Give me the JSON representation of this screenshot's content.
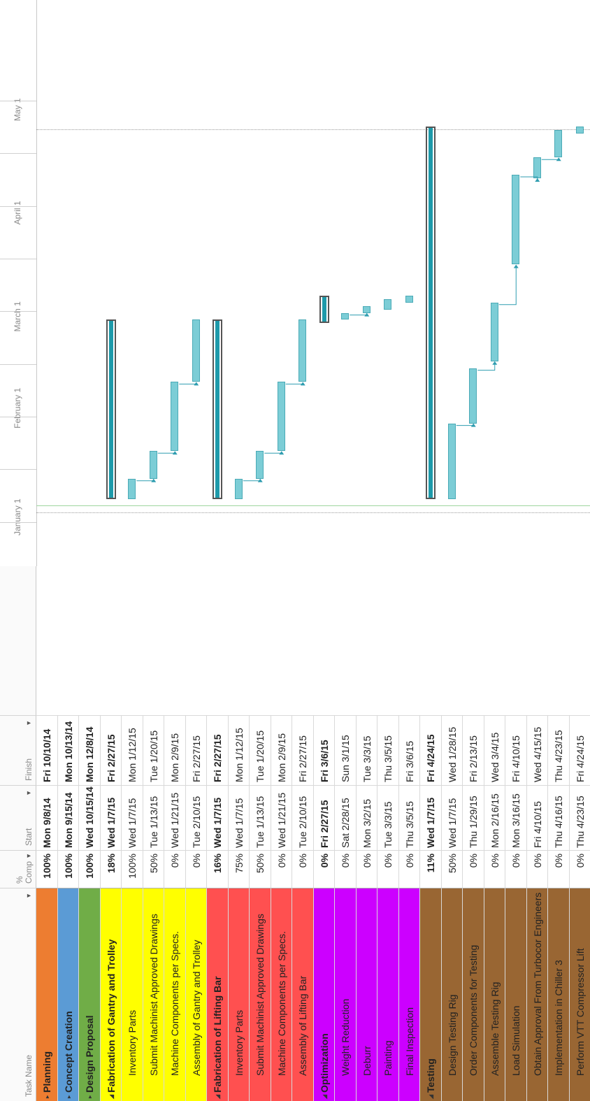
{
  "columns": {
    "task_name": "Task Name",
    "pct_line1": "%",
    "pct_line2": "Comp",
    "start": "Start",
    "finish": "Finish"
  },
  "timeline": {
    "months": [
      "January 1",
      "February 1",
      "March 1",
      "April 1",
      "May 1"
    ]
  },
  "colors": {
    "planning": "#ED7D31",
    "concept": "#5B9BD5",
    "design": "#70AD47",
    "gantry": "#FFFF00",
    "lifting": "#FF5050",
    "optimization": "#CC00FF",
    "testing": "#996633",
    "bar": "#7CCDD6",
    "summary_fill": "#1E9AAA"
  },
  "tasks": [
    {
      "name": "Planning",
      "pct": "100%",
      "start": "Mon 9/8/14",
      "finish": "Fri 10/10/14",
      "level": 0,
      "summary": true,
      "collapsed": true,
      "color": "#ED7D31"
    },
    {
      "name": "Concept Creation",
      "pct": "100%",
      "start": "Mon 9/15/14",
      "finish": "Mon 10/13/14",
      "level": 0,
      "summary": true,
      "collapsed": true,
      "color": "#5B9BD5"
    },
    {
      "name": "Design Proposal",
      "pct": "100%",
      "start": "Wed 10/15/14",
      "finish": "Mon 12/8/14",
      "level": 0,
      "summary": true,
      "collapsed": true,
      "color": "#70AD47"
    },
    {
      "name": "Fabrication of Gantry and Trolley",
      "pct": "18%",
      "start": "Wed 1/7/15",
      "finish": "Fri 2/27/15",
      "level": 0,
      "summary": true,
      "collapsed": false,
      "color": "#FFFF00"
    },
    {
      "name": "Inventory Parts",
      "pct": "100%",
      "start": "Wed 1/7/15",
      "finish": "Mon 1/12/15",
      "level": 1,
      "summary": false,
      "color": "#FFFF00"
    },
    {
      "name": "Submit Machinist Approved Drawings",
      "pct": "50%",
      "start": "Tue 1/13/15",
      "finish": "Tue 1/20/15",
      "level": 1,
      "summary": false,
      "color": "#FFFF00"
    },
    {
      "name": "Machine Components per Specs.",
      "pct": "0%",
      "start": "Wed 1/21/15",
      "finish": "Mon 2/9/15",
      "level": 1,
      "summary": false,
      "color": "#FFFF00"
    },
    {
      "name": "Assembly of Gantry and Trolley",
      "pct": "0%",
      "start": "Tue 2/10/15",
      "finish": "Fri 2/27/15",
      "level": 1,
      "summary": false,
      "color": "#FFFF00"
    },
    {
      "name": "Fabrication of Lifting Bar",
      "pct": "16%",
      "start": "Wed 1/7/15",
      "finish": "Fri 2/27/15",
      "level": 0,
      "summary": true,
      "collapsed": false,
      "color": "#FF5050"
    },
    {
      "name": "Inventory Parts",
      "pct": "75%",
      "start": "Wed 1/7/15",
      "finish": "Mon 1/12/15",
      "level": 1,
      "summary": false,
      "color": "#FF5050"
    },
    {
      "name": "Submit Machinist Approved Drawings",
      "pct": "50%",
      "start": "Tue 1/13/15",
      "finish": "Tue 1/20/15",
      "level": 1,
      "summary": false,
      "color": "#FF5050"
    },
    {
      "name": "Machine Components per Specs.",
      "pct": "0%",
      "start": "Wed 1/21/15",
      "finish": "Mon 2/9/15",
      "level": 1,
      "summary": false,
      "color": "#FF5050"
    },
    {
      "name": "Assembly of Lifting Bar",
      "pct": "0%",
      "start": "Tue 2/10/15",
      "finish": "Fri 2/27/15",
      "level": 1,
      "summary": false,
      "color": "#FF5050"
    },
    {
      "name": "Optimization",
      "pct": "0%",
      "start": "Fri 2/27/15",
      "finish": "Fri 3/6/15",
      "level": 0,
      "summary": true,
      "collapsed": false,
      "color": "#CC00FF"
    },
    {
      "name": "Weight Reduction",
      "pct": "0%",
      "start": "Sat 2/28/15",
      "finish": "Sun 3/1/15",
      "level": 1,
      "summary": false,
      "color": "#CC00FF"
    },
    {
      "name": "Deburr",
      "pct": "0%",
      "start": "Mon 3/2/15",
      "finish": "Tue 3/3/15",
      "level": 1,
      "summary": false,
      "color": "#CC00FF"
    },
    {
      "name": "Painting",
      "pct": "0%",
      "start": "Tue 3/3/15",
      "finish": "Thu 3/5/15",
      "level": 1,
      "summary": false,
      "color": "#CC00FF"
    },
    {
      "name": "Final Inspection",
      "pct": "0%",
      "start": "Thu 3/5/15",
      "finish": "Fri 3/6/15",
      "level": 1,
      "summary": false,
      "color": "#CC00FF"
    },
    {
      "name": "Testing",
      "pct": "11%",
      "start": "Wed 1/7/15",
      "finish": "Fri 4/24/15",
      "level": 0,
      "summary": true,
      "collapsed": false,
      "color": "#996633"
    },
    {
      "name": "Design Testing Rig",
      "pct": "50%",
      "start": "Wed 1/7/15",
      "finish": "Wed 1/28/15",
      "level": 1,
      "summary": false,
      "color": "#996633"
    },
    {
      "name": "Order Components for Testing",
      "pct": "0%",
      "start": "Thu 1/29/15",
      "finish": "Fri 2/13/15",
      "level": 1,
      "summary": false,
      "color": "#996633"
    },
    {
      "name": "Assemble Testing Rig",
      "pct": "0%",
      "start": "Mon 2/16/15",
      "finish": "Wed 3/4/15",
      "level": 1,
      "summary": false,
      "color": "#996633"
    },
    {
      "name": "Load Simulation",
      "pct": "0%",
      "start": "Mon 3/16/15",
      "finish": "Fri 4/10/15",
      "level": 1,
      "summary": false,
      "color": "#996633"
    },
    {
      "name": "Obtain Approval From Turbocor Engineers",
      "pct": "0%",
      "start": "Fri 4/10/15",
      "finish": "Wed 4/15/15",
      "level": 1,
      "summary": false,
      "color": "#996633"
    },
    {
      "name": "Implementation in Chiller 3",
      "pct": "0%",
      "start": "Thu 4/16/15",
      "finish": "Thu 4/23/15",
      "level": 1,
      "summary": false,
      "color": "#996633"
    },
    {
      "name": "Perform VTT Compressor Lift",
      "pct": "0%",
      "start": "Thu 4/23/15",
      "finish": "Fri 4/24/15",
      "level": 1,
      "summary": false,
      "color": "#996633"
    }
  ]
}
